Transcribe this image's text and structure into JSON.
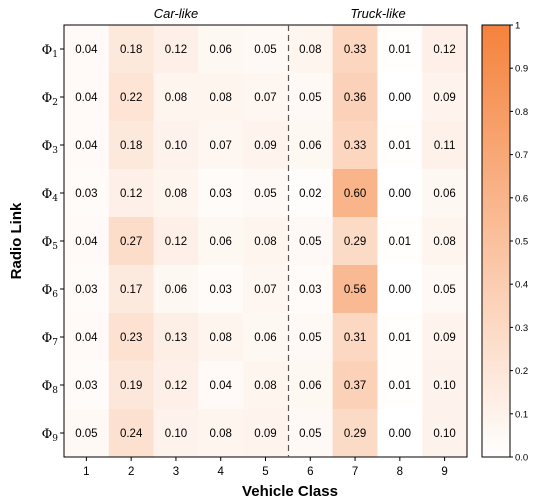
{
  "chart_data": {
    "type": "heatmap",
    "xlabel": "Vehicle Class",
    "ylabel": "Radio Link",
    "x_categories": [
      "1",
      "2",
      "3",
      "4",
      "5",
      "6",
      "7",
      "8",
      "9"
    ],
    "y_categories": [
      {
        "symbol": "Φ",
        "sub": "1"
      },
      {
        "symbol": "Φ",
        "sub": "2"
      },
      {
        "symbol": "Φ",
        "sub": "3"
      },
      {
        "symbol": "Φ",
        "sub": "4"
      },
      {
        "symbol": "Φ",
        "sub": "5"
      },
      {
        "symbol": "Φ",
        "sub": "6"
      },
      {
        "symbol": "Φ",
        "sub": "7"
      },
      {
        "symbol": "Φ",
        "sub": "8"
      },
      {
        "symbol": "Φ",
        "sub": "9"
      }
    ],
    "values": [
      [
        "0.04",
        "0.18",
        "0.12",
        "0.06",
        "0.05",
        "0.08",
        "0.33",
        "0.01",
        "0.12"
      ],
      [
        "0.04",
        "0.22",
        "0.08",
        "0.08",
        "0.07",
        "0.05",
        "0.36",
        "0.00",
        "0.09"
      ],
      [
        "0.04",
        "0.18",
        "0.10",
        "0.07",
        "0.09",
        "0.06",
        "0.33",
        "0.01",
        "0.11"
      ],
      [
        "0.03",
        "0.12",
        "0.08",
        "0.03",
        "0.05",
        "0.02",
        "0.60",
        "0.00",
        "0.06"
      ],
      [
        "0.04",
        "0.27",
        "0.12",
        "0.06",
        "0.08",
        "0.05",
        "0.29",
        "0.01",
        "0.08"
      ],
      [
        "0.03",
        "0.17",
        "0.06",
        "0.03",
        "0.07",
        "0.03",
        "0.56",
        "0.00",
        "0.05"
      ],
      [
        "0.04",
        "0.23",
        "0.13",
        "0.08",
        "0.06",
        "0.05",
        "0.31",
        "0.01",
        "0.09"
      ],
      [
        "0.03",
        "0.19",
        "0.12",
        "0.04",
        "0.08",
        "0.06",
        "0.37",
        "0.01",
        "0.10"
      ],
      [
        "0.05",
        "0.24",
        "0.10",
        "0.08",
        "0.09",
        "0.05",
        "0.29",
        "0.00",
        "0.10"
      ]
    ],
    "group_labels": [
      "Car-like",
      "Truck-like"
    ],
    "group_split_after_class": "5",
    "colorbar": {
      "range": [
        0,
        1
      ],
      "ticks": [
        "0.0",
        "0.1",
        "0.2",
        "0.3",
        "0.4",
        "0.5",
        "0.6",
        "0.7",
        "0.8",
        "0.9",
        "1"
      ],
      "color_low": "#ffffff",
      "color_high": "#f5823c"
    }
  }
}
